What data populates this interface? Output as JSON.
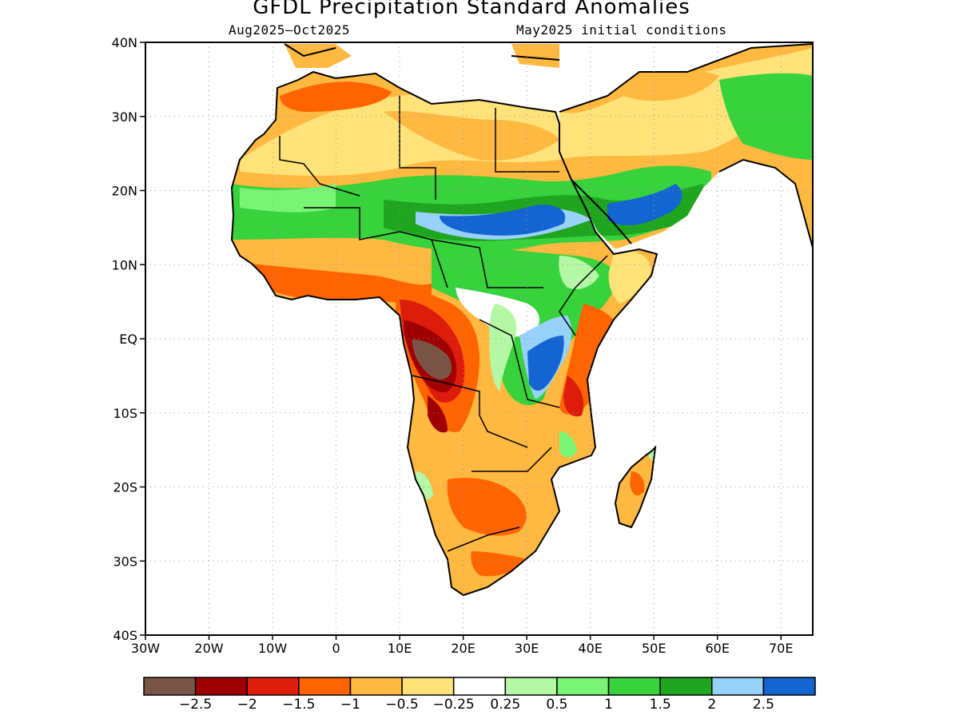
{
  "title": "GFDL Precipitation Standard Anomalies",
  "subtitle_left": "Aug2025–Oct2025",
  "subtitle_right": "May2025 initial conditions",
  "map": {
    "lon_range": [
      -30,
      75
    ],
    "lat_range": [
      -40,
      40
    ],
    "lat_ticks": [
      {
        "value": 40,
        "label": "40N"
      },
      {
        "value": 30,
        "label": "30N"
      },
      {
        "value": 20,
        "label": "20N"
      },
      {
        "value": 10,
        "label": "10N"
      },
      {
        "value": 0,
        "label": "EQ"
      },
      {
        "value": -10,
        "label": "10S"
      },
      {
        "value": -20,
        "label": "20S"
      },
      {
        "value": -30,
        "label": "30S"
      },
      {
        "value": -40,
        "label": "40S"
      }
    ],
    "lon_ticks": [
      {
        "value": -30,
        "label": "30W"
      },
      {
        "value": -20,
        "label": "20W"
      },
      {
        "value": -10,
        "label": "10W"
      },
      {
        "value": 0,
        "label": "0"
      },
      {
        "value": 10,
        "label": "10E"
      },
      {
        "value": 20,
        "label": "20E"
      },
      {
        "value": 30,
        "label": "30E"
      },
      {
        "value": 40,
        "label": "40E"
      },
      {
        "value": 50,
        "label": "50E"
      },
      {
        "value": 60,
        "label": "60E"
      },
      {
        "value": 70,
        "label": "70E"
      }
    ],
    "grid": "dotted"
  },
  "legend": {
    "colors": [
      "#7a5547",
      "#a00000",
      "#dd1c0c",
      "#ff6400",
      "#ffb840",
      "#ffe278",
      "#ffffff",
      "#b4f7a4",
      "#78f574",
      "#37d23c",
      "#1fa51f",
      "#96d2fa",
      "#1464d2"
    ],
    "labels": [
      "−2.5",
      "−2",
      "−1.5",
      "−1",
      "−0.5",
      "−0.25",
      "0.25",
      "0.5",
      "1",
      "1.5",
      "2",
      "2.5"
    ]
  }
}
